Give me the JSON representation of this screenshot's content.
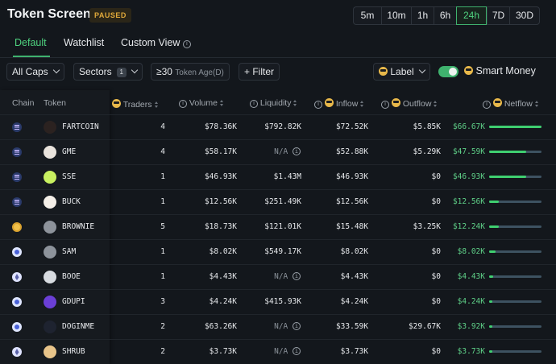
{
  "header": {
    "title": "Token Screener",
    "status_badge": "PAUSED",
    "timeframes": [
      {
        "label": "5m",
        "active": false
      },
      {
        "label": "10m",
        "active": false
      },
      {
        "label": "1h",
        "active": false
      },
      {
        "label": "6h",
        "active": false
      },
      {
        "label": "24h",
        "active": true
      },
      {
        "label": "7D",
        "active": false
      },
      {
        "label": "30D",
        "active": false
      }
    ]
  },
  "tabs": [
    {
      "label": "Default",
      "active": true
    },
    {
      "label": "Watchlist",
      "active": false
    },
    {
      "label": "Custom View",
      "active": false,
      "info_icon": "info-icon"
    }
  ],
  "filters": {
    "caps": "All Caps",
    "sectors": "Sectors",
    "sectors_count": "1",
    "token_age_value": "≥30",
    "token_age_label": "Token Age(D)",
    "add_filter": "+ Filter",
    "label": "Label",
    "smart_money": "Smart Money",
    "smart_money_enabled": true
  },
  "table": {
    "columns": {
      "chain": "Chain",
      "token": "Token",
      "traders": "Traders",
      "volume": "Volume",
      "liquidity": "Liquidity",
      "inflow": "Inflow",
      "outflow": "Outflow",
      "netflow": "Netflow"
    },
    "rows": [
      {
        "chain": "solana",
        "avatar_color": "#2b2220",
        "symbol": "FARTCOIN",
        "traders": "4",
        "volume": "$78.36K",
        "liquidity": "$792.82K",
        "inflow": "$72.52K",
        "outflow": "$5.85K",
        "netflow": "$66.67K",
        "netflow_level": 1.0
      },
      {
        "chain": "solana",
        "avatar_color": "#e9e3dc",
        "symbol": "GME",
        "traders": "4",
        "volume": "$58.17K",
        "liquidity": "N/A",
        "inflow": "$52.88K",
        "outflow": "$5.29K",
        "netflow": "$47.59K",
        "netflow_level": 0.71
      },
      {
        "chain": "solana",
        "avatar_color": "#c8f060",
        "symbol": "SSE",
        "traders": "1",
        "volume": "$46.93K",
        "liquidity": "$1.43M",
        "inflow": "$46.93K",
        "outflow": "$0",
        "netflow": "$46.93K",
        "netflow_level": 0.7
      },
      {
        "chain": "solana",
        "avatar_color": "#f4efe8",
        "symbol": "BUCK",
        "traders": "1",
        "volume": "$12.56K",
        "liquidity": "$251.49K",
        "inflow": "$12.56K",
        "outflow": "$0",
        "netflow": "$12.56K",
        "netflow_level": 0.19
      },
      {
        "chain": "base",
        "avatar_color": "#8d939b",
        "symbol": "BROWNIE",
        "traders": "5",
        "volume": "$18.73K",
        "liquidity": "$121.01K",
        "inflow": "$15.48K",
        "outflow": "$3.25K",
        "netflow": "$12.24K",
        "netflow_level": 0.18
      },
      {
        "chain": "sui",
        "avatar_color": "#8d939b",
        "symbol": "SAM",
        "traders": "1",
        "volume": "$8.02K",
        "liquidity": "$549.17K",
        "inflow": "$8.02K",
        "outflow": "$0",
        "netflow": "$8.02K",
        "netflow_level": 0.12
      },
      {
        "chain": "ethereum",
        "avatar_color": "#d7dbe0",
        "symbol": "BOOE",
        "traders": "1",
        "volume": "$4.43K",
        "liquidity": "N/A",
        "inflow": "$4.43K",
        "outflow": "$0",
        "netflow": "$4.43K",
        "netflow_level": 0.07
      },
      {
        "chain": "sui",
        "avatar_color": "#6b3fd6",
        "symbol": "GDUPI",
        "traders": "3",
        "volume": "$4.24K",
        "liquidity": "$415.93K",
        "inflow": "$4.24K",
        "outflow": "$0",
        "netflow": "$4.24K",
        "netflow_level": 0.06
      },
      {
        "chain": "sui",
        "avatar_color": "#1e2330",
        "symbol": "DOGINME",
        "traders": "2",
        "volume": "$63.26K",
        "liquidity": "N/A",
        "inflow": "$33.59K",
        "outflow": "$29.67K",
        "netflow": "$3.92K",
        "netflow_level": 0.06
      },
      {
        "chain": "ethereum",
        "avatar_color": "#e8c48a",
        "symbol": "SHRUB",
        "traders": "2",
        "volume": "$3.73K",
        "liquidity": "N/A",
        "inflow": "$3.73K",
        "outflow": "$0",
        "netflow": "$3.73K",
        "netflow_level": 0.06
      }
    ]
  }
}
